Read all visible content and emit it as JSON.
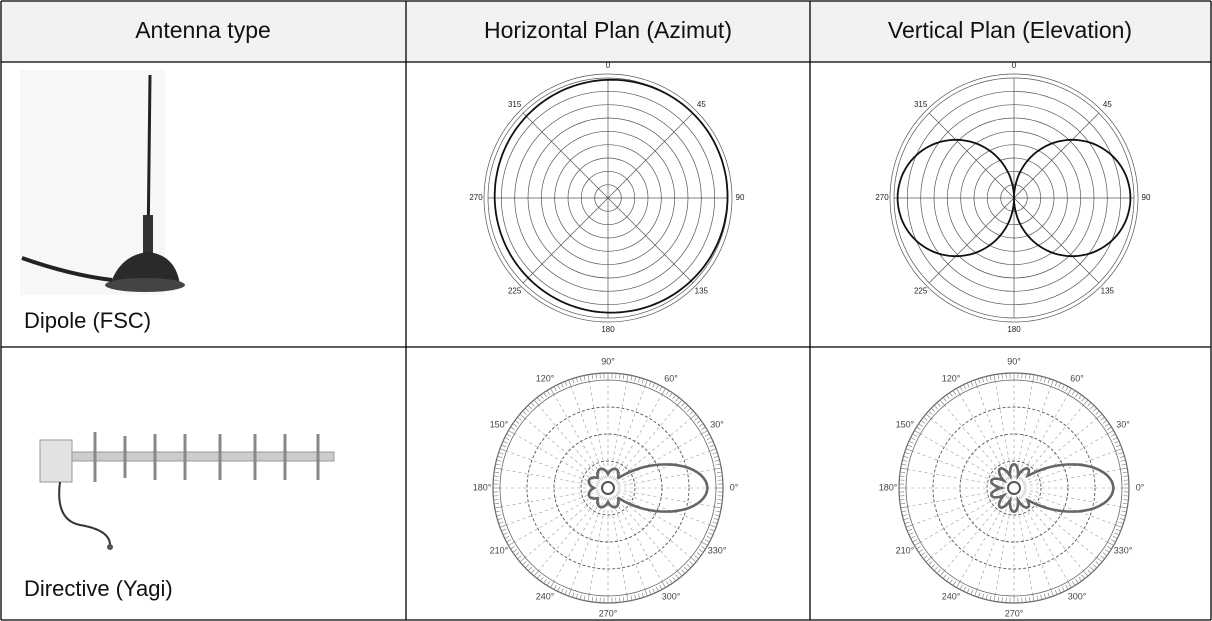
{
  "table": {
    "header": [
      "Antenna type",
      "Horizontal Plan (Azimut)",
      "Vertical Plan (Elevation)"
    ],
    "rows": [
      {
        "antenna": "Dipole (FSC)",
        "azimuth_labels": [
          "0",
          "45",
          "90",
          "135",
          "180",
          "225",
          "270",
          "315"
        ],
        "elevation_labels": [
          "0",
          "45",
          "90",
          "135",
          "180",
          "225",
          "270",
          "315"
        ]
      },
      {
        "antenna": "Directive (Yagi)",
        "azimuth_labels": [
          "90°",
          "60°",
          "30°",
          "0°",
          "330°",
          "300°",
          "270°",
          "240°",
          "210°",
          "180°",
          "150°",
          "120°"
        ],
        "elevation_labels": [
          "90°",
          "60°",
          "30°",
          "0°",
          "330°",
          "300°",
          "270°",
          "240°",
          "210°",
          "180°",
          "150°",
          "120°"
        ]
      }
    ]
  }
}
